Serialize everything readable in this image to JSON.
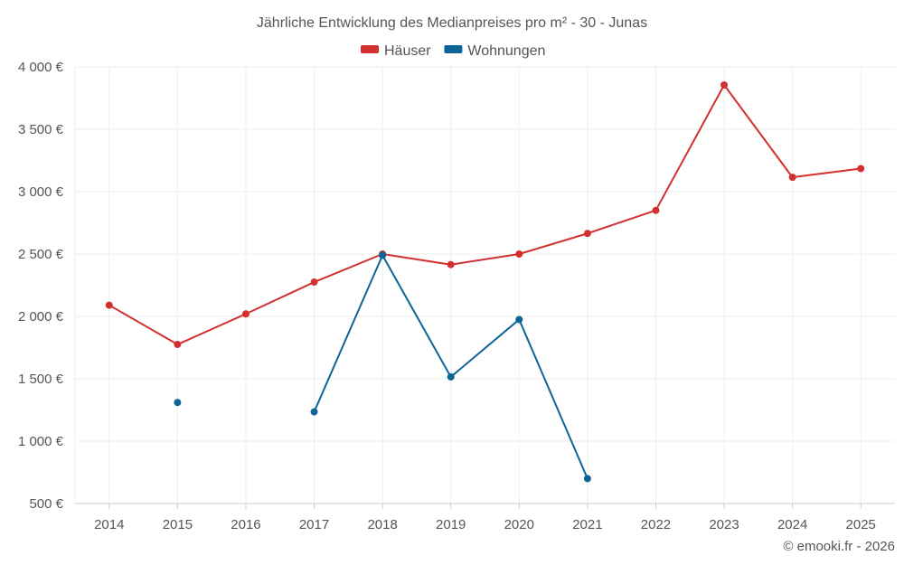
{
  "chart_data": {
    "type": "line",
    "title": "Jährliche Entwicklung des Medianpreises pro m² - 30 - Junas",
    "categories": [
      "2014",
      "2015",
      "2016",
      "2017",
      "2018",
      "2019",
      "2020",
      "2021",
      "2022",
      "2023",
      "2024",
      "2025"
    ],
    "series": [
      {
        "name": "Häuser",
        "color": "#d32f2f",
        "values": [
          2090,
          1775,
          2020,
          2275,
          2500,
          2415,
          2500,
          2665,
          2850,
          3855,
          3115,
          3185
        ]
      },
      {
        "name": "Wohnungen",
        "color": "#0d6496",
        "values": [
          null,
          1310,
          null,
          1235,
          2490,
          1515,
          1975,
          700,
          null,
          null,
          null,
          null
        ]
      }
    ],
    "ylim": [
      500,
      4000
    ],
    "yticks": [
      500,
      1000,
      1500,
      2000,
      2500,
      3000,
      3500,
      4000
    ],
    "ytick_labels": [
      "500 €",
      "1 000 €",
      "1 500 €",
      "2 000 €",
      "2 500 €",
      "3 000 €",
      "3 500 €",
      "4 000 €"
    ],
    "grid": true,
    "legend_position": "top-center",
    "credit": "© emooki.fr - 2026"
  }
}
